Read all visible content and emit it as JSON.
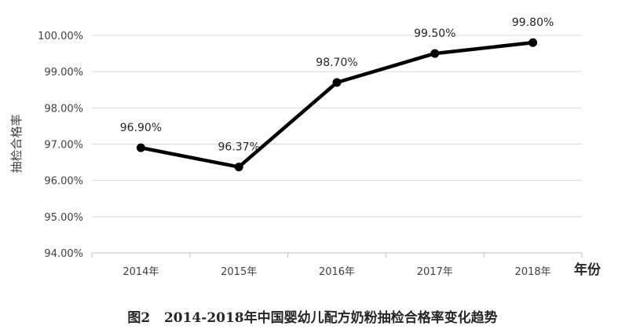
{
  "chart_data": {
    "type": "line",
    "title": "",
    "caption": "图2   2014-2018年中国婴幼儿配方奶粉抽检合格率变化趋势",
    "ylabel": "抽检合格率",
    "xlabel": "年份",
    "categories": [
      "2014年",
      "2015年",
      "2016年",
      "2017年",
      "2018年"
    ],
    "series": [
      {
        "values": [
          96.9,
          96.37,
          98.7,
          99.5,
          99.8
        ]
      }
    ],
    "data_labels": [
      "96.90%",
      "96.37%",
      "98.70%",
      "99.50%",
      "99.80%"
    ],
    "yticks": [
      "94.00%",
      "95.00%",
      "96.00%",
      "97.00%",
      "98.00%",
      "99.00%",
      "100.00%"
    ],
    "ylim": [
      94,
      100
    ],
    "grid": true,
    "legend": "none",
    "colors": {
      "line": "#000000",
      "grid": "#d9d9d9",
      "axis": "#bfbfbf"
    }
  }
}
